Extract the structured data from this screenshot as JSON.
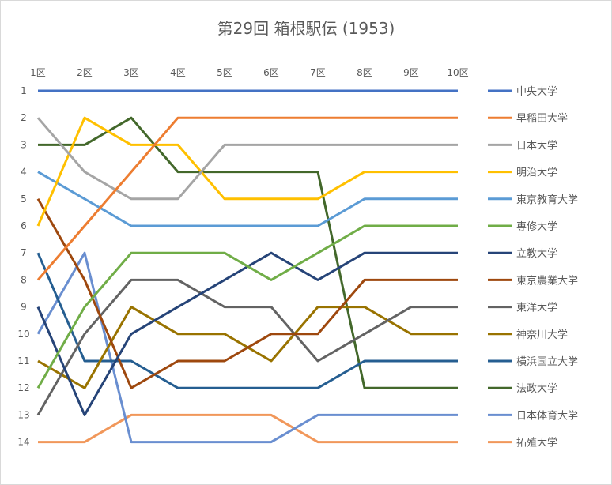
{
  "chart_data": {
    "type": "line",
    "title": "第29回 箱根駅伝 (1953)",
    "x": [
      "1区",
      "2区",
      "3区",
      "4区",
      "5区",
      "6区",
      "7区",
      "8区",
      "9区",
      "10区"
    ],
    "y_ticks": [
      "1",
      "2",
      "3",
      "4",
      "5",
      "6",
      "7",
      "8",
      "9",
      "10",
      "11",
      "12",
      "13",
      "14"
    ],
    "ylim": [
      1,
      14
    ],
    "y_reversed": true,
    "grid": false,
    "legend_position": "right",
    "series": [
      {
        "name": "中央大学",
        "color": "#4472C4",
        "values": [
          1,
          1,
          1,
          1,
          1,
          1,
          1,
          1,
          1,
          1
        ]
      },
      {
        "name": "早稲田大学",
        "color": "#ED7D31",
        "values": [
          8,
          6,
          4,
          2,
          2,
          2,
          2,
          2,
          2,
          2
        ]
      },
      {
        "name": "日本大学",
        "color": "#A5A5A5",
        "values": [
          2,
          4,
          5,
          5,
          3,
          3,
          3,
          3,
          3,
          3
        ]
      },
      {
        "name": "明治大学",
        "color": "#FFC000",
        "values": [
          6,
          2,
          3,
          3,
          5,
          5,
          5,
          4,
          4,
          4
        ]
      },
      {
        "name": "東京教育大学",
        "color": "#5B9BD5",
        "values": [
          4,
          5,
          6,
          6,
          6,
          6,
          6,
          5,
          5,
          5
        ]
      },
      {
        "name": "専修大学",
        "color": "#70AD47",
        "values": [
          12,
          9,
          7,
          7,
          7,
          8,
          7,
          6,
          6,
          6
        ]
      },
      {
        "name": "立教大学",
        "color": "#264478",
        "values": [
          9,
          13,
          10,
          9,
          8,
          7,
          8,
          7,
          7,
          7
        ]
      },
      {
        "name": "東京農業大学",
        "color": "#9E480E",
        "values": [
          5,
          8,
          12,
          11,
          11,
          10,
          10,
          8,
          8,
          8
        ]
      },
      {
        "name": "東洋大学",
        "color": "#636363",
        "values": [
          13,
          10,
          8,
          8,
          9,
          9,
          11,
          10,
          9,
          9
        ]
      },
      {
        "name": "神奈川大学",
        "color": "#997300",
        "values": [
          11,
          12,
          9,
          10,
          10,
          11,
          9,
          9,
          10,
          10
        ]
      },
      {
        "name": "横浜国立大学",
        "color": "#255E91",
        "values": [
          7,
          11,
          11,
          12,
          12,
          12,
          12,
          11,
          11,
          11
        ]
      },
      {
        "name": "法政大学",
        "color": "#43682B",
        "values": [
          3,
          3,
          2,
          4,
          4,
          4,
          4,
          12,
          12,
          12
        ]
      },
      {
        "name": "日本体育大学",
        "color": "#698ED0",
        "values": [
          10,
          7,
          14,
          14,
          14,
          14,
          13,
          13,
          13,
          13
        ]
      },
      {
        "name": "拓殖大学",
        "color": "#F1975A",
        "values": [
          14,
          14,
          13,
          13,
          13,
          13,
          14,
          14,
          14,
          14
        ]
      }
    ]
  }
}
